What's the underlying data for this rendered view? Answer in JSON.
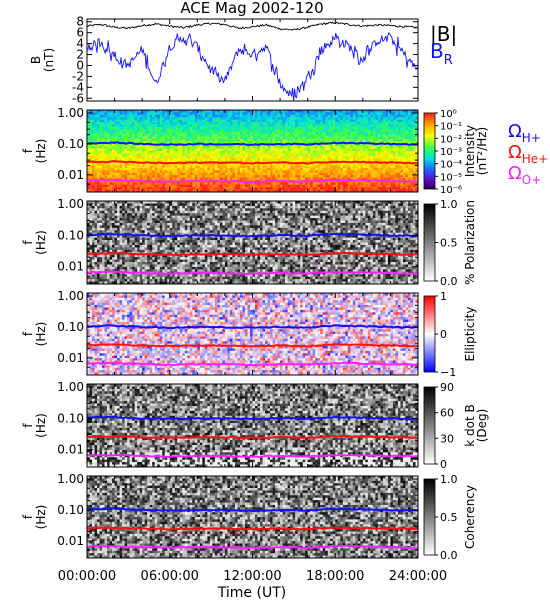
{
  "title": "ACE Mag 2002-120",
  "xlabel": "Time (UT)",
  "x_ticks": [
    "00:00:00",
    "06:00:00",
    "12:00:00",
    "18:00:00",
    "24:00:00"
  ],
  "colors": {
    "black": "#000000",
    "blue": "#1010ff",
    "red": "#ff1010",
    "magenta": "#ff20ff"
  },
  "chart_data": [
    {
      "type": "line",
      "panel": "B",
      "ylabel_top": "B",
      "ylabel_unit": "(nT)",
      "y_ticks": [
        "8",
        "6",
        "4",
        "2",
        "0",
        "-2",
        "-4",
        "-6"
      ],
      "ylim": [
        -6.5,
        8.5
      ],
      "x": [
        0,
        1,
        2,
        3,
        4,
        5,
        6,
        7,
        8,
        9,
        10,
        11,
        12,
        13,
        14,
        15,
        16,
        17,
        18,
        19,
        20,
        21,
        22,
        23,
        24
      ],
      "series": [
        {
          "name": "|B|",
          "color": "#000000",
          "values": [
            7.2,
            7.5,
            7.0,
            6.8,
            7.3,
            7.6,
            7.2,
            6.9,
            7.4,
            7.7,
            7.5,
            6.8,
            7.1,
            7.4,
            6.7,
            6.5,
            7.0,
            7.6,
            7.8,
            7.5,
            7.2,
            7.4,
            7.3,
            7.1,
            6.9
          ]
        },
        {
          "name": "BR",
          "color": "#1010ff",
          "values": [
            3.0,
            4.5,
            1.5,
            0.0,
            3.0,
            -3.5,
            3.5,
            5.0,
            3.5,
            -1.0,
            -3.0,
            3.0,
            2.0,
            3.5,
            -3.5,
            -6.0,
            -2.0,
            3.0,
            5.0,
            3.5,
            1.0,
            4.5,
            5.0,
            2.0,
            -1.0
          ]
        }
      ]
    },
    {
      "type": "heatmap",
      "panel": "Intensity",
      "ylabel_top": "f",
      "ylabel_unit": "(Hz)",
      "y_ticks": [
        "1.00",
        "0.10",
        "0.01"
      ],
      "colorbar_label": [
        "Intensity",
        "(nT²/Hz)"
      ],
      "colorbar_ticks": [
        "10⁰",
        "10⁻¹",
        "10⁻²",
        "10⁻³",
        "10⁻⁴",
        "10⁻⁵",
        "10⁻⁶"
      ],
      "colormap": "rainbow"
    },
    {
      "type": "heatmap",
      "panel": "Polarization",
      "ylabel_top": "f",
      "ylabel_unit": "(Hz)",
      "y_ticks": [
        "1.00",
        "0.10",
        "0.01"
      ],
      "colorbar_label": [
        "% Polarization"
      ],
      "colorbar_ticks": [
        "1.0",
        "0.5",
        "0.0"
      ],
      "colormap": "grayscale"
    },
    {
      "type": "heatmap",
      "panel": "Ellipticity",
      "ylabel_top": "f",
      "ylabel_unit": "(Hz)",
      "y_ticks": [
        "1.00",
        "0.10",
        "0.01"
      ],
      "colorbar_label": [
        "Ellipticity"
      ],
      "colorbar_ticks": [
        "1",
        "0",
        "−1"
      ],
      "colormap": "blue-white-red"
    },
    {
      "type": "heatmap",
      "panel": "k dot B",
      "ylabel_top": "f",
      "ylabel_unit": "(Hz)",
      "y_ticks": [
        "1.00",
        "0.10",
        "0.01"
      ],
      "colorbar_label": [
        "k dot B",
        "(Deg)"
      ],
      "colorbar_ticks": [
        "90",
        "60",
        "30",
        "0"
      ],
      "colormap": "grayscale"
    },
    {
      "type": "heatmap",
      "panel": "Coherency",
      "ylabel_top": "f",
      "ylabel_unit": "(Hz)",
      "y_ticks": [
        "1.00",
        "0.10",
        "0.01"
      ],
      "colorbar_label": [
        "Coherency"
      ],
      "colorbar_ticks": [
        "1.0",
        "0.5",
        "0.0"
      ],
      "colormap": "grayscale"
    }
  ],
  "legend_top": {
    "absB": "|B|",
    "BR_main": "B",
    "BR_sub": "R"
  },
  "legend_gyro": [
    {
      "symbol": "Ω",
      "sub": "H+",
      "color": "#1010ff"
    },
    {
      "symbol": "Ω",
      "sub": "He+",
      "color": "#ff1010"
    },
    {
      "symbol": "Ω",
      "sub": "O+",
      "color": "#ff20ff"
    }
  ],
  "gyro_lines": {
    "x": [
      0,
      2,
      4,
      6,
      8,
      10,
      12,
      14,
      16,
      18,
      20,
      22,
      24
    ],
    "H+": [
      0.105,
      0.11,
      0.1,
      0.095,
      0.1,
      0.098,
      0.095,
      0.1,
      0.097,
      0.11,
      0.105,
      0.1,
      0.095
    ],
    "He+": [
      0.026,
      0.027,
      0.025,
      0.024,
      0.025,
      0.025,
      0.024,
      0.025,
      0.024,
      0.027,
      0.026,
      0.025,
      0.024
    ],
    "O+": [
      0.0066,
      0.0068,
      0.0063,
      0.006,
      0.0063,
      0.0062,
      0.006,
      0.0063,
      0.0061,
      0.0068,
      0.0066,
      0.0063,
      0.006
    ]
  }
}
